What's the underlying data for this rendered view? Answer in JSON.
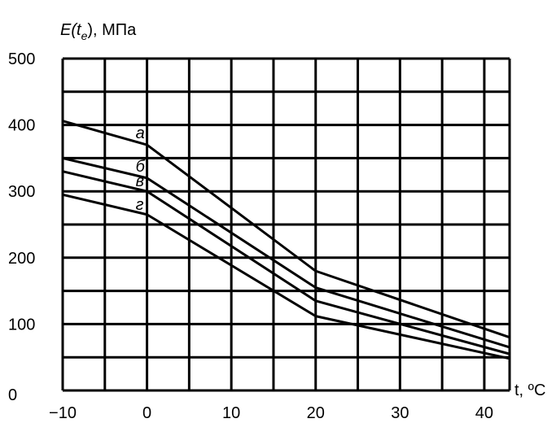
{
  "chart_data": {
    "type": "line",
    "title": "",
    "ylabel": "E(t_e), МПа",
    "ylabel_parts": {
      "main": "E(t",
      "sub": "e",
      "tail": "), МПа"
    },
    "xlabel": "t, ºC",
    "xlim": [
      -10,
      43
    ],
    "ylim": [
      0,
      500
    ],
    "x_ticks": [
      -10,
      0,
      10,
      20,
      30,
      40
    ],
    "y_ticks": [
      0,
      100,
      200,
      300,
      400,
      500
    ],
    "x_gridlines": [
      -10,
      -5,
      0,
      5,
      10,
      15,
      20,
      25,
      30,
      35,
      40,
      43
    ],
    "y_gridlines": [
      50,
      100,
      150,
      200,
      250,
      300,
      350,
      400,
      450,
      500
    ],
    "grid": true,
    "series": [
      {
        "name": "а",
        "x": [
          -10,
          0,
          20,
          43
        ],
        "y": [
          406,
          370,
          180,
          80
        ]
      },
      {
        "name": "б",
        "x": [
          -10,
          0,
          20,
          43
        ],
        "y": [
          350,
          320,
          155,
          65
        ]
      },
      {
        "name": "в",
        "x": [
          -10,
          0,
          20,
          43
        ],
        "y": [
          330,
          300,
          135,
          55
        ]
      },
      {
        "name": "г",
        "x": [
          -10,
          0,
          20,
          43
        ],
        "y": [
          295,
          265,
          112,
          48
        ]
      }
    ],
    "series_labels": [
      "а",
      "б",
      "в",
      "г"
    ]
  }
}
